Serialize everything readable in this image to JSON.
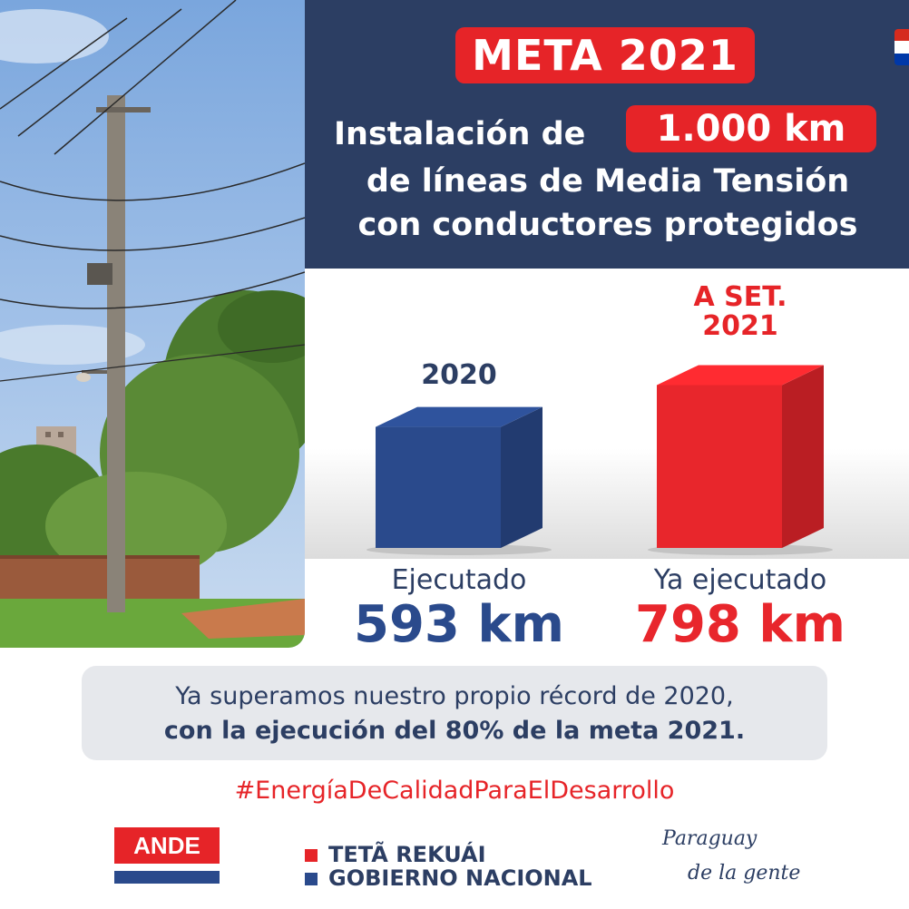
{
  "header": {
    "meta_label": "META 2021",
    "headline_line1": "Instalación de",
    "headline_km": "1.000 km",
    "headline_line2": "de líneas de Media Tensión",
    "headline_line3": "con conductores protegidos"
  },
  "chart_data": {
    "type": "bar",
    "categories": [
      "2020",
      "A SET. 2021"
    ],
    "series": [
      {
        "values": [
          593,
          798
        ]
      }
    ],
    "bars": [
      {
        "year": "2020",
        "year_lines": [
          "2020"
        ],
        "caption": "Ejecutado",
        "value": 593,
        "unit": "km",
        "color": "#2a4a8c"
      },
      {
        "year": "A SET. 2021",
        "year_lines": [
          "A SET.",
          "2021"
        ],
        "caption": "Ya ejecutado",
        "value": 798,
        "unit": "km",
        "color": "#e8262c"
      }
    ]
  },
  "labels": {
    "bar1_year": "2020",
    "bar2_year_line1": "A SET.",
    "bar2_year_line2": "2021",
    "bar1_caption": "Ejecutado",
    "bar2_caption": "Ya ejecutado",
    "bar1_value": "593 km",
    "bar2_value": "798 km"
  },
  "callout": {
    "line1": "Ya superamos nuestro propio récord de 2020,",
    "line2": "con la ejecución del 80% de la meta 2021."
  },
  "hashtag": "#EnergíaDeCalidadParaElDesarrollo",
  "footer": {
    "ande_logo_text": "ANDE",
    "gov_line1": "TETÃ REKUÁI",
    "gov_line2": "GOBIERNO NACIONAL",
    "slogan_line1": "Paraguay",
    "slogan_line2": "de la gente"
  },
  "colors": {
    "navy": "#2c3e63",
    "red": "#e62428",
    "bar_blue": "#2a4a8c",
    "bar_red": "#e8262c"
  }
}
